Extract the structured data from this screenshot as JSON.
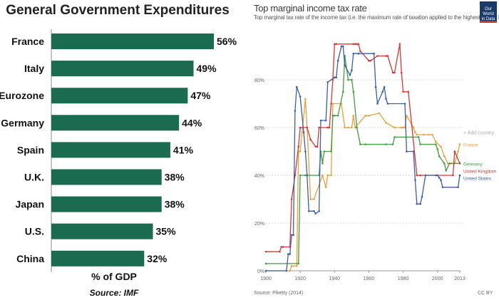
{
  "left": {
    "title": "General Government Expenditures",
    "xcaption": "% of GDP",
    "source": "Source: IMF",
    "bar_color": "#1a6b4f"
  },
  "right": {
    "title": "Top marginal income tax rate",
    "subtitle": "Top marginal tax rate of the income tax (i.e. the maximum rate of taxation applied to the highest part of income)",
    "logo_lines": [
      "Our World",
      "in Data"
    ],
    "source": "Source: Piketty (2014)",
    "license": "CC BY",
    "add_country": "+ Add country"
  },
  "chart_data": [
    {
      "type": "bar",
      "orientation": "horizontal",
      "title": "General Government Expenditures",
      "xlabel": "% of GDP",
      "categories": [
        "France",
        "Italy",
        "Eurozone",
        "Germany",
        "Spain",
        "U.K.",
        "Japan",
        "U.S.",
        "China"
      ],
      "values": [
        56,
        49,
        47,
        44,
        41,
        38,
        38,
        35,
        32
      ],
      "value_labels": [
        "56%",
        "49%",
        "47%",
        "44%",
        "41%",
        "38%",
        "38%",
        "35%",
        "32%"
      ]
    },
    {
      "type": "line",
      "title": "Top marginal income tax rate",
      "x_ticks": [
        "1900",
        "1920",
        "1940",
        "1960",
        "1980",
        "2000",
        "2013"
      ],
      "y_ticks": [
        "0%",
        "20%",
        "40%",
        "60%",
        "80%"
      ],
      "xlim": [
        1900,
        2013
      ],
      "ylim": [
        0,
        95
      ],
      "series": [
        {
          "name": "France",
          "color": "#e8a13a",
          "points": [
            [
              1900,
              0
            ],
            [
              1914,
              0
            ],
            [
              1915,
              2
            ],
            [
              1918,
              2
            ],
            [
              1919,
              50
            ],
            [
              1920,
              50
            ],
            [
              1923,
              72
            ],
            [
              1924,
              60
            ],
            [
              1926,
              30
            ],
            [
              1928,
              30
            ],
            [
              1933,
              40
            ],
            [
              1935,
              35
            ],
            [
              1936,
              40
            ],
            [
              1938,
              40
            ],
            [
              1939,
              70
            ],
            [
              1944,
              70
            ],
            [
              1946,
              60
            ],
            [
              1948,
              60
            ],
            [
              1950,
              60
            ],
            [
              1951,
              65
            ],
            [
              1952,
              60
            ],
            [
              1958,
              65
            ],
            [
              1960,
              65
            ],
            [
              1966,
              66
            ],
            [
              1970,
              62
            ],
            [
              1975,
              60
            ],
            [
              1979,
              60
            ],
            [
              1980,
              60
            ],
            [
              1981,
              60
            ],
            [
              1982,
              65
            ],
            [
              1986,
              60
            ],
            [
              1987,
              58
            ],
            [
              1988,
              57
            ],
            [
              1992,
              57
            ],
            [
              1995,
              57
            ],
            [
              1997,
              57
            ],
            [
              1999,
              54
            ],
            [
              2002,
              52
            ],
            [
              2004,
              48
            ],
            [
              2006,
              45
            ],
            [
              2008,
              45
            ],
            [
              2010,
              45
            ],
            [
              2012,
              50
            ],
            [
              2013,
              53
            ]
          ]
        },
        {
          "name": "Germany",
          "color": "#3f9e3f",
          "points": [
            [
              1900,
              3
            ],
            [
              1919,
              3
            ],
            [
              1920,
              40
            ],
            [
              1923,
              40
            ],
            [
              1924,
              40
            ],
            [
              1931,
              40
            ],
            [
              1932,
              50
            ],
            [
              1933,
              45
            ],
            [
              1934,
              50
            ],
            [
              1938,
              50
            ],
            [
              1939,
              65
            ],
            [
              1940,
              65
            ],
            [
              1942,
              65
            ],
            [
              1945,
              75
            ],
            [
              1946,
              90
            ],
            [
              1948,
              80
            ],
            [
              1950,
              80
            ],
            [
              1951,
              75
            ],
            [
              1953,
              60
            ],
            [
              1955,
              53
            ],
            [
              1958,
              53
            ],
            [
              1970,
              53
            ],
            [
              1974,
              53
            ],
            [
              1975,
              56
            ],
            [
              1989,
              56
            ],
            [
              1990,
              53
            ],
            [
              1999,
              53
            ],
            [
              2000,
              51
            ],
            [
              2001,
              48
            ],
            [
              2004,
              45
            ],
            [
              2005,
              42
            ],
            [
              2007,
              45
            ],
            [
              2013,
              45
            ]
          ]
        },
        {
          "name": "United Kingdom",
          "color": "#d93636",
          "points": [
            [
              1900,
              8
            ],
            [
              1908,
              8
            ],
            [
              1909,
              10
            ],
            [
              1910,
              10
            ],
            [
              1914,
              10
            ],
            [
              1915,
              30
            ],
            [
              1917,
              40
            ],
            [
              1919,
              52
            ],
            [
              1920,
              60
            ],
            [
              1924,
              60
            ],
            [
              1926,
              55
            ],
            [
              1929,
              52
            ],
            [
              1930,
              52
            ],
            [
              1931,
              60
            ],
            [
              1936,
              60
            ],
            [
              1937,
              60
            ],
            [
              1938,
              70
            ],
            [
              1939,
              80
            ],
            [
              1940,
              95
            ],
            [
              1941,
              95
            ],
            [
              1951,
              95
            ],
            [
              1952,
              95
            ],
            [
              1953,
              95
            ],
            [
              1954,
              95
            ],
            [
              1955,
              92
            ],
            [
              1960,
              88
            ],
            [
              1961,
              88
            ],
            [
              1965,
              90
            ],
            [
              1970,
              90
            ],
            [
              1971,
              90
            ],
            [
              1974,
              83
            ],
            [
              1975,
              83
            ],
            [
              1978,
              95
            ],
            [
              1979,
              83
            ],
            [
              1980,
              75
            ],
            [
              1983,
              75
            ],
            [
              1988,
              40
            ],
            [
              1990,
              40
            ],
            [
              1999,
              40
            ],
            [
              2009,
              40
            ],
            [
              2010,
              50
            ],
            [
              2013,
              45
            ]
          ]
        },
        {
          "name": "United States",
          "color": "#3a5fa8",
          "points": [
            [
              1900,
              0
            ],
            [
              1912,
              0
            ],
            [
              1913,
              7
            ],
            [
              1914,
              7
            ],
            [
              1915,
              15
            ],
            [
              1916,
              15
            ],
            [
              1917,
              67
            ],
            [
              1918,
              77
            ],
            [
              1920,
              73
            ],
            [
              1922,
              58
            ],
            [
              1923,
              50
            ],
            [
              1924,
              40
            ],
            [
              1925,
              25
            ],
            [
              1928,
              25
            ],
            [
              1929,
              24
            ],
            [
              1931,
              25
            ],
            [
              1932,
              63
            ],
            [
              1935,
              63
            ],
            [
              1936,
              79
            ],
            [
              1940,
              81
            ],
            [
              1941,
              81
            ],
            [
              1942,
              88
            ],
            [
              1944,
              94
            ],
            [
              1945,
              94
            ],
            [
              1946,
              86
            ],
            [
              1949,
              82
            ],
            [
              1950,
              84
            ],
            [
              1951,
              91
            ],
            [
              1954,
              91
            ],
            [
              1963,
              91
            ],
            [
              1964,
              77
            ],
            [
              1965,
              70
            ],
            [
              1968,
              75
            ],
            [
              1969,
              77
            ],
            [
              1970,
              72
            ],
            [
              1971,
              70
            ],
            [
              1981,
              70
            ],
            [
              1982,
              50
            ],
            [
              1986,
              50
            ],
            [
              1987,
              38
            ],
            [
              1988,
              28
            ],
            [
              1990,
              28
            ],
            [
              1991,
              31
            ],
            [
              1993,
              40
            ],
            [
              2000,
              40
            ],
            [
              2001,
              39
            ],
            [
              2002,
              38
            ],
            [
              2003,
              35
            ],
            [
              2012,
              35
            ],
            [
              2013,
              40
            ]
          ]
        }
      ],
      "end_labels": [
        {
          "name": "France",
          "color": "#e8a13a",
          "y": 53
        },
        {
          "name": "Germany",
          "color": "#3f9e3f",
          "y": 45
        },
        {
          "name": "United Kingdom",
          "color": "#d93636",
          "y": 42
        },
        {
          "name": "United States",
          "color": "#3a5fa8",
          "y": 39
        }
      ]
    }
  ]
}
